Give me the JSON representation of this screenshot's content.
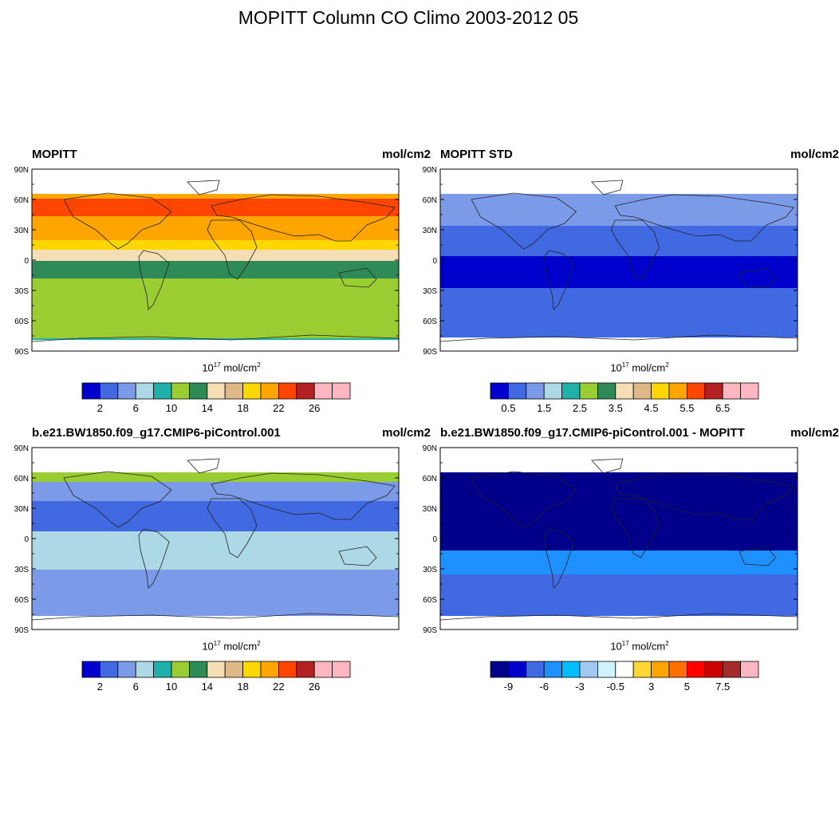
{
  "main_title": "MOPITT Column CO Climo 2003-2012 05",
  "lat_ticks": [
    "90N",
    "60N",
    "30N",
    "0",
    "30S",
    "60S",
    "90S"
  ],
  "units_text": {
    "base": "10",
    "exp": "17",
    "unit": "mol/cm",
    "unit_exp": "2"
  },
  "colors": {
    "abs": [
      "#0000cd",
      "#4169e1",
      "#7b9be8",
      "#add8e6",
      "#20b2aa",
      "#9acd32",
      "#2e8b57",
      "#f5deb3",
      "#deb887",
      "#ffd700",
      "#ffa500",
      "#ff4500",
      "#b22222",
      "#ffb6c1",
      "#ffb6c1"
    ],
    "diff": [
      "#00008b",
      "#0000cd",
      "#4169e1",
      "#1e90ff",
      "#00bfff",
      "#a0c8f0",
      "#d0f4ff",
      "#ffffff",
      "#ffd733",
      "#ffa500",
      "#ff7000",
      "#ff0000",
      "#cd0000",
      "#a52a2a",
      "#ffb6c1"
    ]
  },
  "panels": [
    {
      "left_label": "MOPITT",
      "right_label": "mol/cm2",
      "colorbar": {
        "labels": [
          "2",
          "6",
          "10",
          "14",
          "18",
          "22",
          "26"
        ],
        "palette": "abs"
      }
    },
    {
      "left_label": "MOPITT STD",
      "right_label": "mol/cm2",
      "colorbar": {
        "labels": [
          "0.5",
          "1.5",
          "2.5",
          "3.5",
          "4.5",
          "5.5",
          "6.5"
        ],
        "palette": "abs"
      }
    },
    {
      "left_label": "b.e21.BW1850.f09_g17.CMIP6-piControl.001",
      "right_label": "mol/cm2",
      "colorbar": {
        "labels": [
          "2",
          "6",
          "10",
          "14",
          "18",
          "22",
          "26"
        ],
        "palette": "abs"
      }
    },
    {
      "left_label": "b.e21.BW1850.f09_g17.CMIP6-piControl.001 - MOPITT",
      "right_label": "mol/cm2",
      "colorbar": {
        "labels": [
          "-9",
          "-6",
          "-3",
          "-0.5",
          "3",
          "5",
          "7.5"
        ],
        "palette": "diff"
      }
    }
  ]
}
